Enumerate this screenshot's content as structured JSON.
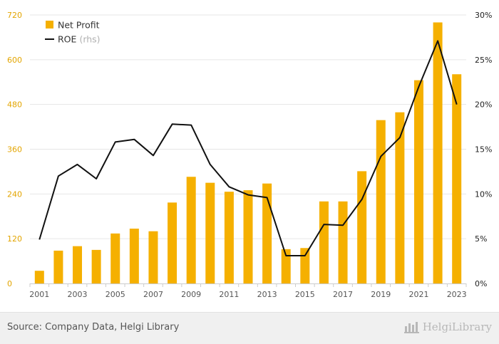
{
  "chart_data": {
    "type": "bar+line",
    "x": [
      "2001",
      "2002",
      "2003",
      "2004",
      "2005",
      "2006",
      "2007",
      "2008",
      "2009",
      "2010",
      "2011",
      "2012",
      "2013",
      "2014",
      "2015",
      "2016",
      "2017",
      "2018",
      "2019",
      "2020",
      "2021",
      "2022",
      "2023"
    ],
    "x_tick_labels": [
      "2001",
      "2003",
      "2005",
      "2007",
      "2009",
      "2011",
      "2013",
      "2015",
      "2017",
      "2019",
      "2021",
      "2023"
    ],
    "series": [
      {
        "name": "Net Profit",
        "kind": "bar",
        "axis": "left",
        "color": "#f5b000",
        "values": [
          34,
          88,
          100,
          90,
          134,
          147,
          140,
          217,
          286,
          270,
          246,
          250,
          268,
          92,
          95,
          220,
          220,
          301,
          438,
          459,
          545,
          700,
          561
        ]
      },
      {
        "name": "ROE",
        "name_suffix": "(rhs)",
        "kind": "line",
        "axis": "right",
        "color": "#111111",
        "values": [
          4.9,
          12.0,
          13.3,
          11.7,
          15.8,
          16.1,
          14.3,
          17.8,
          17.7,
          13.3,
          10.8,
          9.9,
          9.6,
          3.1,
          3.1,
          6.6,
          6.5,
          9.4,
          14.2,
          16.3,
          22.0,
          27.1,
          20.0
        ]
      }
    ],
    "y_left": {
      "range": [
        0,
        720
      ],
      "ticks": [
        "0",
        "120",
        "240",
        "360",
        "480",
        "600",
        "720"
      ],
      "color": "#e3a500"
    },
    "y_right": {
      "range": [
        0,
        30
      ],
      "ticks": [
        "0%",
        "5%",
        "10%",
        "15%",
        "20%",
        "25%",
        "30%"
      ]
    },
    "legend_position": "top-left",
    "grid": true
  },
  "legend": {
    "net_profit": "Net Profit",
    "roe": "ROE",
    "roe_suffix": "(rhs)"
  },
  "footer": {
    "source": "Source: Company Data, Helgi Library",
    "brand": "HelgiLibrary"
  }
}
